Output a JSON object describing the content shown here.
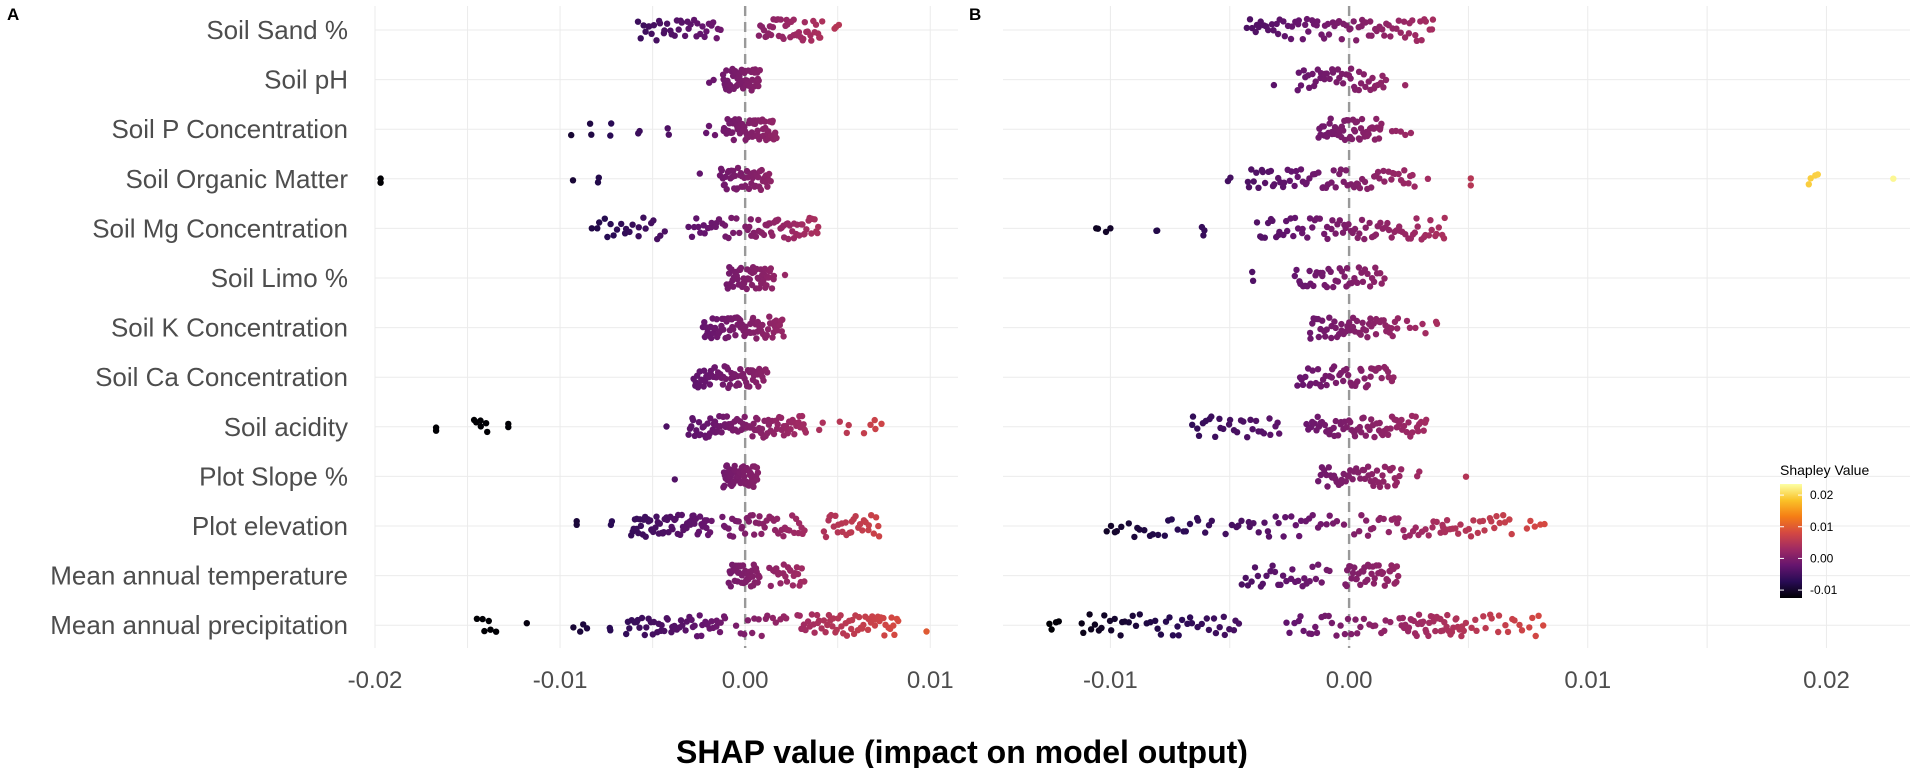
{
  "figure": {
    "x_axis_title": "SHAP value (impact on model output)"
  },
  "chart_data": [
    {
      "type": "scatter",
      "panel": "A",
      "features": [
        "Soil Sand %",
        "Soil pH",
        "Soil P Concentration",
        "Soil Organic Matter",
        "Soil Mg Concentration",
        "Soil Limo %",
        "Soil K Concentration",
        "Soil Ca Concentration",
        "Soil acidity",
        "Plot Slope %",
        "Plot elevation",
        "Mean annual temperature",
        "Mean annual precipitation"
      ],
      "xlim": [
        -0.02,
        0.0115
      ],
      "xticks": [
        -0.02,
        -0.01,
        0.0,
        0.01
      ],
      "xtick_labels": [
        "-0.02",
        "-0.01",
        "0.00",
        "0.01"
      ],
      "reference_line": 0.0,
      "grid": true,
      "color_by": "shap",
      "distributions": [
        {
          "feature": "Soil Sand %",
          "clusters": [
            [
              -0.0058,
              -0.0013,
              38
            ],
            [
              0.0007,
              0.0042,
              42
            ],
            [
              0.0048,
              0.0051,
              3
            ]
          ]
        },
        {
          "feature": "Soil pH",
          "clusters": [
            [
              -0.002,
              -0.0017,
              2
            ],
            [
              -0.0012,
              0.0008,
              55
            ]
          ]
        },
        {
          "feature": "Soil P Concentration",
          "clusters": [
            [
              -0.0094,
              -0.0094,
              1
            ],
            [
              -0.0084,
              -0.0083,
              2
            ],
            [
              -0.0073,
              -0.0072,
              2
            ],
            [
              -0.0058,
              -0.0057,
              2
            ],
            [
              -0.0042,
              -0.0041,
              2
            ],
            [
              -0.0023,
              -0.0016,
              3
            ],
            [
              -0.0012,
              0.0017,
              65
            ]
          ]
        },
        {
          "feature": "Soil Organic Matter",
          "clusters": [
            [
              -0.0197,
              -0.0197,
              2
            ],
            [
              -0.0093,
              -0.0093,
              1
            ],
            [
              -0.008,
              -0.0079,
              2
            ],
            [
              -0.0025,
              -0.0024,
              1
            ],
            [
              -0.0014,
              0.0014,
              50
            ]
          ]
        },
        {
          "feature": "Soil Mg Concentration",
          "clusters": [
            [
              -0.0083,
              -0.0043,
              22
            ],
            [
              -0.0031,
              -0.0003,
              22
            ],
            [
              0.0,
              0.004,
              50
            ]
          ]
        },
        {
          "feature": "Soil Limo %",
          "clusters": [
            [
              -0.001,
              0.0016,
              55
            ],
            [
              0.0021,
              0.0022,
              1
            ]
          ]
        },
        {
          "feature": "Soil K Concentration",
          "clusters": [
            [
              -0.0023,
              0.0021,
              80
            ]
          ]
        },
        {
          "feature": "Soil Ca Concentration",
          "clusters": [
            [
              -0.0028,
              0.0012,
              70
            ]
          ]
        },
        {
          "feature": "Soil acidity",
          "clusters": [
            [
              -0.0167,
              -0.0167,
              2
            ],
            [
              -0.0148,
              -0.0138,
              6
            ],
            [
              -0.0128,
              -0.0128,
              2
            ],
            [
              -0.0043,
              -0.0042,
              1
            ],
            [
              -0.0031,
              0.0033,
              95
            ],
            [
              0.004,
              0.0042,
              2
            ],
            [
              0.0051,
              0.0057,
              3
            ],
            [
              0.0064,
              0.0074,
              5
            ]
          ]
        },
        {
          "feature": "Plot Slope %",
          "clusters": [
            [
              -0.0038,
              -0.0038,
              1
            ],
            [
              -0.0012,
              0.0007,
              60
            ]
          ]
        },
        {
          "feature": "Plot elevation",
          "clusters": [
            [
              -0.0091,
              -0.0091,
              2
            ],
            [
              -0.0073,
              -0.0072,
              2
            ],
            [
              -0.0062,
              -0.0018,
              65
            ],
            [
              -0.0013,
              0.0033,
              45
            ],
            [
              0.0042,
              0.0073,
              30
            ]
          ]
        },
        {
          "feature": "Mean annual temperature",
          "clusters": [
            [
              -0.0009,
              0.0008,
              45
            ],
            [
              0.0013,
              0.0032,
              25
            ]
          ]
        },
        {
          "feature": "Mean annual precipitation",
          "clusters": [
            [
              -0.0145,
              -0.0134,
              6
            ],
            [
              -0.0118,
              -0.0118,
              1
            ],
            [
              -0.0094,
              -0.0083,
              4
            ],
            [
              -0.0074,
              -0.0072,
              2
            ],
            [
              -0.0065,
              -0.001,
              50
            ],
            [
              -0.0005,
              0.0023,
              15
            ],
            [
              0.0028,
              0.0083,
              60
            ],
            [
              0.0098,
              0.0098,
              1
            ]
          ]
        }
      ]
    },
    {
      "type": "scatter",
      "panel": "B",
      "features": [
        "Soil Sand %",
        "Soil pH",
        "Soil P Concentration",
        "Soil Organic Matter",
        "Soil Mg Concentration",
        "Soil Limo %",
        "Soil K Concentration",
        "Soil Ca Concentration",
        "Soil acidity",
        "Plot Slope %",
        "Plot elevation",
        "Mean annual temperature",
        "Mean annual precipitation"
      ],
      "xlim": [
        -0.0145,
        0.0235
      ],
      "xticks": [
        -0.01,
        0.0,
        0.01,
        0.02
      ],
      "xtick_labels": [
        "-0.01",
        "0.00",
        "0.01",
        "0.02"
      ],
      "reference_line": 0.0,
      "grid": true,
      "color_by": "shap",
      "distributions": [
        {
          "feature": "Soil Sand %",
          "clusters": [
            [
              -0.0043,
              0.0036,
              80
            ]
          ]
        },
        {
          "feature": "Soil pH",
          "clusters": [
            [
              -0.0032,
              -0.0031,
              1
            ],
            [
              -0.0022,
              0.0016,
              45
            ],
            [
              0.0023,
              0.0024,
              1
            ]
          ]
        },
        {
          "feature": "Soil P Concentration",
          "clusters": [
            [
              -0.0013,
              0.0014,
              55
            ],
            [
              0.0018,
              0.0026,
              5
            ]
          ]
        },
        {
          "feature": "Soil Organic Matter",
          "clusters": [
            [
              -0.0051,
              -0.0049,
              2
            ],
            [
              -0.0043,
              -0.0014,
              30
            ],
            [
              -0.0013,
              0.0028,
              40
            ],
            [
              0.0033,
              0.0033,
              1
            ],
            [
              0.0051,
              0.0051,
              2
            ],
            [
              0.0192,
              0.0197,
              4
            ],
            [
              0.0228,
              0.0228,
              1
            ]
          ]
        },
        {
          "feature": "Soil Mg Concentration",
          "clusters": [
            [
              -0.0107,
              -0.01,
              4
            ],
            [
              -0.0081,
              -0.008,
              2
            ],
            [
              -0.0062,
              -0.006,
              3
            ],
            [
              -0.0039,
              -0.0012,
              25
            ],
            [
              -0.0011,
              0.0041,
              55
            ]
          ]
        },
        {
          "feature": "Soil Limo %",
          "clusters": [
            [
              -0.0041,
              -0.004,
              2
            ],
            [
              -0.0023,
              0.0015,
              45
            ]
          ]
        },
        {
          "feature": "Soil K Concentration",
          "clusters": [
            [
              -0.0017,
              0.0021,
              55
            ],
            [
              0.0023,
              0.0033,
              5
            ],
            [
              0.0036,
              0.0037,
              2
            ]
          ]
        },
        {
          "feature": "Soil Ca Concentration",
          "clusters": [
            [
              -0.0022,
              0.0019,
              50
            ]
          ]
        },
        {
          "feature": "Soil acidity",
          "clusters": [
            [
              -0.0067,
              -0.0028,
              30
            ],
            [
              -0.0018,
              0.0033,
              70
            ]
          ]
        },
        {
          "feature": "Plot Slope %",
          "clusters": [
            [
              -0.0013,
              0.0022,
              50
            ],
            [
              0.0028,
              0.003,
              2
            ],
            [
              0.0049,
              0.0049,
              1
            ]
          ]
        },
        {
          "feature": "Plot elevation",
          "clusters": [
            [
              -0.0103,
              -0.0056,
              25
            ],
            [
              -0.0052,
              -0.0002,
              30
            ],
            [
              0.0002,
              0.0042,
              30
            ],
            [
              0.0038,
              0.0069,
              25
            ],
            [
              0.0073,
              0.0083,
              5
            ]
          ]
        },
        {
          "feature": "Mean annual temperature",
          "clusters": [
            [
              -0.0045,
              -0.0008,
              30
            ],
            [
              -0.0002,
              0.0021,
              40
            ]
          ]
        },
        {
          "feature": "Mean annual precipitation",
          "clusters": [
            [
              -0.0127,
              -0.0121,
              4
            ],
            [
              -0.0113,
              -0.0087,
              18
            ],
            [
              -0.0085,
              -0.0063,
              15
            ],
            [
              -0.0062,
              -0.0045,
              12
            ],
            [
              -0.0027,
              0.0018,
              30
            ],
            [
              0.0021,
              0.0049,
              45
            ],
            [
              0.005,
              0.0082,
              20
            ]
          ]
        }
      ]
    }
  ],
  "legend": {
    "title": "Shapley Value",
    "min": -0.0125,
    "max": 0.0235,
    "ticks": [
      0.02,
      0.01,
      0.0,
      -0.01
    ],
    "tick_labels": [
      "0.02",
      "0.01",
      "0.00",
      "-0.01"
    ],
    "colorscale": [
      "#000004",
      "#280b54",
      "#65156e",
      "#9f2a63",
      "#d44842",
      "#f57d15",
      "#fac228",
      "#fcffa4"
    ]
  }
}
